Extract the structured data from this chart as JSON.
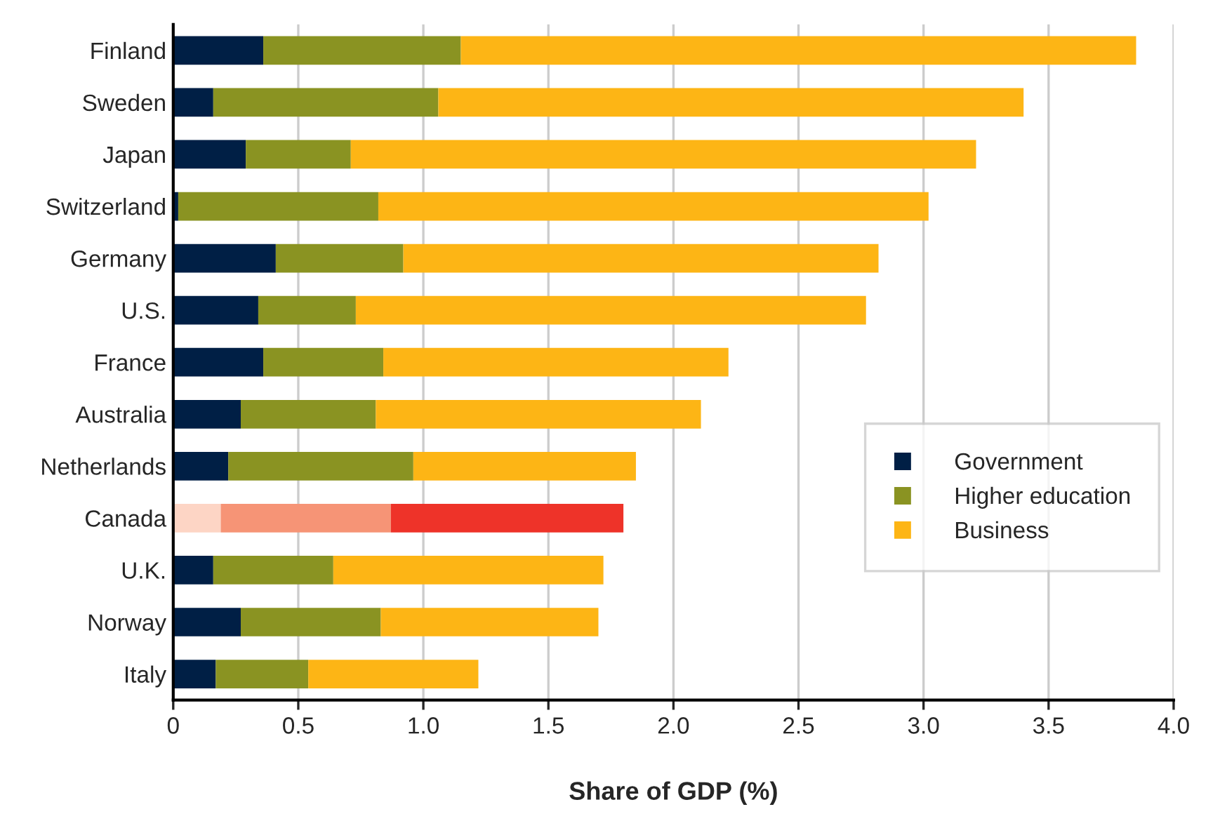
{
  "chart_data": {
    "type": "bar",
    "orientation": "horizontal",
    "stacked": true,
    "xlabel": "Share of GDP (%)",
    "categories": [
      "Finland",
      "Sweden",
      "Japan",
      "Switzerland",
      "Germany",
      "U.S.",
      "France",
      "Australia",
      "Netherlands",
      "Canada",
      "U.K.",
      "Norway",
      "Italy"
    ],
    "series": [
      {
        "name": "Government",
        "color": "#001f45",
        "colors": [
          "#001f45",
          "#001f45",
          "#001f45",
          "#001f45",
          "#001f45",
          "#001f45",
          "#001f45",
          "#001f45",
          "#001f45",
          "#fdd5c5",
          "#001f45",
          "#001f45",
          "#001f45"
        ],
        "values": [
          0.36,
          0.16,
          0.29,
          0.02,
          0.41,
          0.34,
          0.36,
          0.27,
          0.22,
          0.19,
          0.16,
          0.27,
          0.17
        ]
      },
      {
        "name": "Higher education",
        "color": "#8a9322",
        "colors": [
          "#8a9322",
          "#8a9322",
          "#8a9322",
          "#8a9322",
          "#8a9322",
          "#8a9322",
          "#8a9322",
          "#8a9322",
          "#8a9322",
          "#f69476",
          "#8a9322",
          "#8a9322",
          "#8a9322"
        ],
        "values": [
          0.79,
          0.9,
          0.42,
          0.8,
          0.51,
          0.39,
          0.48,
          0.54,
          0.74,
          0.68,
          0.48,
          0.56,
          0.37
        ]
      },
      {
        "name": "Business",
        "color": "#fdb515",
        "colors": [
          "#fdb515",
          "#fdb515",
          "#fdb515",
          "#fdb515",
          "#fdb515",
          "#fdb515",
          "#fdb515",
          "#fdb515",
          "#fdb515",
          "#ee3329",
          "#fdb515",
          "#fdb515",
          "#fdb515"
        ],
        "values": [
          2.7,
          2.34,
          2.5,
          2.2,
          1.9,
          2.04,
          1.38,
          1.3,
          0.89,
          0.93,
          1.08,
          0.87,
          0.68
        ]
      }
    ],
    "xlim": [
      0,
      4.0
    ],
    "xticks": [
      0,
      {
        "value": 0.5,
        "label": "0.5"
      },
      {
        "value": 1.0,
        "label": "1.0"
      },
      {
        "value": 1.5,
        "label": "1.5"
      },
      {
        "value": 2.0,
        "label": "2.0"
      },
      {
        "value": 2.5,
        "label": "2.5"
      },
      {
        "value": 3.0,
        "label": "3.0"
      },
      {
        "value": 3.5,
        "label": "3.5"
      },
      {
        "value": 4.0,
        "label": "4.0"
      }
    ],
    "grid": "x",
    "legend": "right"
  }
}
